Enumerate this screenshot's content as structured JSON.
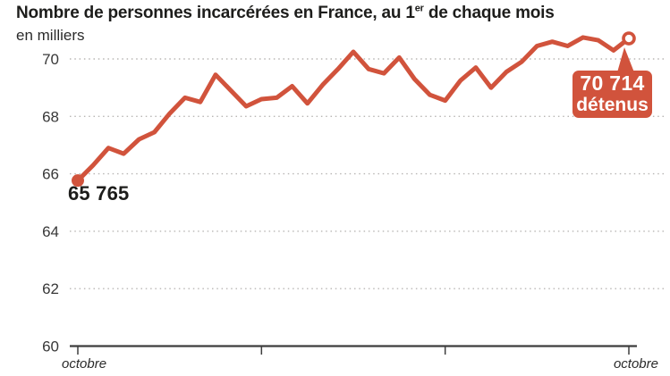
{
  "header": {
    "title_prefix": "Nombre de personnes incarcérées en France, au 1",
    "title_sup": "er",
    "title_suffix": " de chaque mois",
    "subtitle": "en milliers"
  },
  "chart_data": {
    "type": "line",
    "title": "Nombre de personnes incarcérées en France, au 1er de chaque mois",
    "unit_note": "en milliers",
    "ylabel": "",
    "xlabel": "",
    "ylim": [
      60,
      71
    ],
    "y_ticks": [
      70,
      68,
      66,
      64,
      62,
      60
    ],
    "grid": "dotted horizontal gridlines, solid bottom axis",
    "legend_position": "none",
    "x_tick_labels": [
      "octobre",
      "",
      "",
      "octobre"
    ],
    "x_tick_indices": [
      0,
      12,
      24,
      36
    ],
    "x_unit": "monthly points from octobre to octobre (3 years)",
    "values": [
      65.765,
      66.3,
      66.9,
      66.7,
      67.2,
      67.45,
      68.1,
      68.65,
      68.5,
      69.45,
      68.9,
      68.35,
      68.6,
      68.65,
      69.05,
      68.45,
      69.1,
      69.65,
      70.25,
      69.65,
      69.5,
      70.05,
      69.3,
      68.75,
      68.55,
      69.25,
      69.7,
      69.0,
      69.55,
      69.9,
      70.45,
      70.6,
      70.45,
      70.75,
      70.65,
      70.3,
      70.714
    ],
    "line_color": "#d1533c",
    "annotations": {
      "start": {
        "label": "65 765",
        "value": 65.765,
        "marker": "filled-dot"
      },
      "end": {
        "value_label": "70 714",
        "unit_label": "détenus",
        "value": 70.714,
        "marker": "open-circle"
      }
    }
  }
}
